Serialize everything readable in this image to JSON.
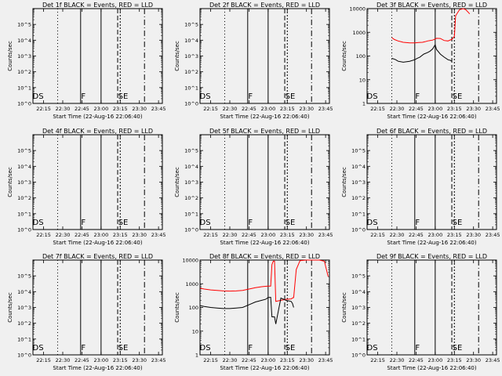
{
  "figure": {
    "background": "#f0f0f0",
    "events_color": "#000000",
    "lld_color": "#ff0000"
  },
  "chart_data": [
    {
      "type": "line",
      "detector": "1f",
      "title": "Det 1f BLACK = Events, RED = LLD",
      "xlabel": "Start Time (22-Aug-16 22:06:40)",
      "ylabel": "Counts/sec",
      "xticks": [
        "22:15",
        "22:30",
        "22:45",
        "23:00",
        "23:15",
        "23:30",
        "23:45"
      ],
      "xlim": [
        "22:06:40",
        "23:48"
      ],
      "yscale": "log",
      "ylim": [
        1,
        1000000
      ],
      "yticks": [
        "10^0",
        "10^1",
        "10^2",
        "10^3",
        "10^4",
        "10^5"
      ],
      "grid": false,
      "annotations": [
        "DS",
        "F",
        "SE"
      ],
      "series": []
    },
    {
      "type": "line",
      "detector": "2f",
      "title": "Det 2f BLACK = Events, RED = LLD",
      "xlabel": "Start Time (22-Aug-16 22:06:40)",
      "ylabel": "Counts/sec",
      "xticks": [
        "22:15",
        "22:30",
        "22:45",
        "23:00",
        "23:15",
        "23:30",
        "23:45"
      ],
      "xlim": [
        "22:06:40",
        "23:48"
      ],
      "yscale": "log",
      "ylim": [
        1,
        1000000
      ],
      "yticks": [
        "10^0",
        "10^1",
        "10^2",
        "10^3",
        "10^4",
        "10^5"
      ],
      "grid": false,
      "annotations": [
        "DS",
        "F",
        "SE"
      ],
      "series": []
    },
    {
      "type": "line",
      "detector": "3f",
      "title": "Det 3f BLACK = Events, RED = LLD",
      "xlabel": "Start Time (22-Aug-16 22:06:40)",
      "ylabel": "Counts/sec",
      "xticks": [
        "22:15",
        "22:30",
        "22:45",
        "23:00",
        "23:15",
        "23:30",
        "23:45"
      ],
      "xlim": [
        "22:06:40",
        "23:48"
      ],
      "yscale": "log",
      "ylim": [
        1,
        10000
      ],
      "yticks": [
        "1",
        "10",
        "100",
        "1000",
        "10000"
      ],
      "grid": false,
      "annotations": [
        "DS",
        "F",
        "SE"
      ],
      "series": [
        {
          "color": "#ff0000",
          "x": [
            "22:26",
            "22:28",
            "22:31",
            "22:35",
            "22:40",
            "22:44",
            "22:47",
            "22:50",
            "22:52",
            "22:54",
            "22:56",
            "22:58",
            "23:00",
            "23:01",
            "23:04",
            "23:07",
            "23:10",
            "23:12",
            "23:13",
            "23:15",
            "23:16",
            "23:19",
            "23:22",
            "23:24",
            "23:27"
          ],
          "y": [
            600,
            500,
            430,
            380,
            360,
            360,
            370,
            380,
            400,
            430,
            450,
            470,
            520,
            560,
            550,
            450,
            430,
            480,
            500,
            680,
            5000,
            9000,
            10000,
            9000,
            6000
          ]
        },
        {
          "color": "#000000",
          "x": [
            "22:26",
            "22:29",
            "22:31",
            "22:35",
            "22:40",
            "22:44",
            "22:46",
            "22:48",
            "22:51",
            "22:54",
            "22:56",
            "22:58",
            "23:00",
            "23:01",
            "23:04",
            "23:07",
            "23:10",
            "23:12",
            "23:13"
          ],
          "y": [
            80,
            70,
            60,
            55,
            60,
            70,
            80,
            90,
            120,
            140,
            160,
            200,
            300,
            190,
            120,
            90,
            70,
            65,
            60
          ]
        }
      ]
    },
    {
      "type": "line",
      "detector": "4f",
      "title": "Det 4f BLACK = Events, RED = LLD",
      "xlabel": "Start Time (22-Aug-16 22:06:40)",
      "ylabel": "Counts/sec",
      "xticks": [
        "22:15",
        "22:30",
        "22:45",
        "23:00",
        "23:15",
        "23:30",
        "23:45"
      ],
      "xlim": [
        "22:06:40",
        "23:48"
      ],
      "yscale": "log",
      "ylim": [
        1,
        1000000
      ],
      "yticks": [
        "10^0",
        "10^1",
        "10^2",
        "10^3",
        "10^4",
        "10^5"
      ],
      "grid": false,
      "annotations": [
        "DS",
        "F",
        "SE"
      ],
      "series": []
    },
    {
      "type": "line",
      "detector": "5f",
      "title": "Det 5f BLACK = Events, RED = LLD",
      "xlabel": "Start Time (22-Aug-16 22:06:40)",
      "ylabel": "Counts/sec",
      "xticks": [
        "22:15",
        "22:30",
        "22:45",
        "23:00",
        "23:15",
        "23:30",
        "23:45"
      ],
      "xlim": [
        "22:06:40",
        "23:48"
      ],
      "yscale": "log",
      "ylim": [
        1,
        1000000
      ],
      "yticks": [
        "10^0",
        "10^1",
        "10^2",
        "10^3",
        "10^4",
        "10^5"
      ],
      "grid": false,
      "annotations": [
        "DS",
        "F",
        "SE"
      ],
      "series": []
    },
    {
      "type": "line",
      "detector": "6f",
      "title": "Det 6f BLACK = Events, RED = LLD",
      "xlabel": "Start Time (22-Aug-16 22:06:40)",
      "ylabel": "Counts/sec",
      "xticks": [
        "22:15",
        "22:30",
        "22:45",
        "23:00",
        "23:15",
        "23:30",
        "23:45"
      ],
      "xlim": [
        "22:06:40",
        "23:48"
      ],
      "yscale": "log",
      "ylim": [
        1,
        1000000
      ],
      "yticks": [
        "10^0",
        "10^1",
        "10^2",
        "10^3",
        "10^4",
        "10^5"
      ],
      "grid": false,
      "annotations": [
        "DS",
        "F",
        "SE"
      ],
      "series": []
    },
    {
      "type": "line",
      "detector": "7f",
      "title": "Det 7f BLACK = Events, RED = LLD",
      "xlabel": "Start Time (22-Aug-16 22:06:40)",
      "ylabel": "Counts/sec",
      "xticks": [
        "22:15",
        "22:30",
        "22:45",
        "23:00",
        "23:15",
        "23:30",
        "23:45"
      ],
      "xlim": [
        "22:06:40",
        "23:48"
      ],
      "yscale": "log",
      "ylim": [
        1,
        1000000
      ],
      "yticks": [
        "10^0",
        "10^1",
        "10^2",
        "10^3",
        "10^4",
        "10^5"
      ],
      "grid": false,
      "annotations": [
        "DS",
        "F",
        "SE"
      ],
      "series": []
    },
    {
      "type": "line",
      "detector": "8f",
      "title": "Det 8f BLACK = Events, RED = LLD",
      "xlabel": "Start Time (22-Aug-16 22:06:40)",
      "ylabel": "Counts/sec",
      "xticks": [
        "22:15",
        "22:30",
        "22:45",
        "23:00",
        "23:15",
        "23:30",
        "23:45"
      ],
      "xlim": [
        "22:06:40",
        "23:48"
      ],
      "yscale": "log",
      "ylim": [
        1,
        10000
      ],
      "yticks": [
        "1",
        "10",
        "100",
        "1000",
        "10000"
      ],
      "grid": false,
      "annotations": [
        "DS",
        "F",
        "SE"
      ],
      "series": [
        {
          "color": "#ff0000",
          "x": [
            "22:06:40",
            "22:10",
            "22:15",
            "22:20",
            "22:25",
            "22:30",
            "22:35",
            "22:40",
            "22:45",
            "22:50",
            "22:55",
            "22:58",
            "23:00",
            "23:02",
            "23:03",
            "23:04",
            "23:05",
            "23:06",
            "23:10",
            "23:14",
            "23:18",
            "23:19",
            "23:20",
            "23:22",
            "23:25",
            "23:30",
            "23:35",
            "23:40",
            "23:44",
            "23:47"
          ],
          "y": [
            650,
            600,
            550,
            520,
            500,
            490,
            500,
            520,
            600,
            680,
            750,
            780,
            800,
            800,
            6500,
            9000,
            9000,
            180,
            200,
            220,
            230,
            250,
            260,
            4000,
            9500,
            10000,
            10000,
            10000,
            9000,
            2000
          ]
        },
        {
          "color": "#000000",
          "x": [
            "22:06:40",
            "22:10",
            "22:15",
            "22:20",
            "22:25",
            "22:30",
            "22:35",
            "22:40",
            "22:45",
            "22:50",
            "22:55",
            "22:58",
            "23:00",
            "23:02",
            "23:03",
            "23:04",
            "23:05",
            "23:06",
            "23:10",
            "23:14",
            "23:18",
            "23:19",
            "23:20"
          ],
          "y": [
            120,
            110,
            100,
            95,
            90,
            90,
            95,
            100,
            130,
            170,
            200,
            220,
            260,
            270,
            40,
            40,
            40,
            20,
            250,
            200,
            180,
            150,
            100
          ]
        }
      ]
    },
    {
      "type": "line",
      "detector": "9f",
      "title": "Det 9f BLACK = Events, RED = LLD",
      "xlabel": "Start Time (22-Aug-16 22:06:40)",
      "ylabel": "Counts/sec",
      "xticks": [
        "22:15",
        "22:30",
        "22:45",
        "23:00",
        "23:15",
        "23:30",
        "23:45"
      ],
      "xlim": [
        "22:06:40",
        "23:48"
      ],
      "yscale": "log",
      "ylim": [
        1,
        1000000
      ],
      "yticks": [
        "10^0",
        "10^1",
        "10^2",
        "10^3",
        "10^4",
        "10^5"
      ],
      "grid": false,
      "annotations": [
        "DS",
        "F",
        "SE"
      ],
      "series": []
    }
  ]
}
